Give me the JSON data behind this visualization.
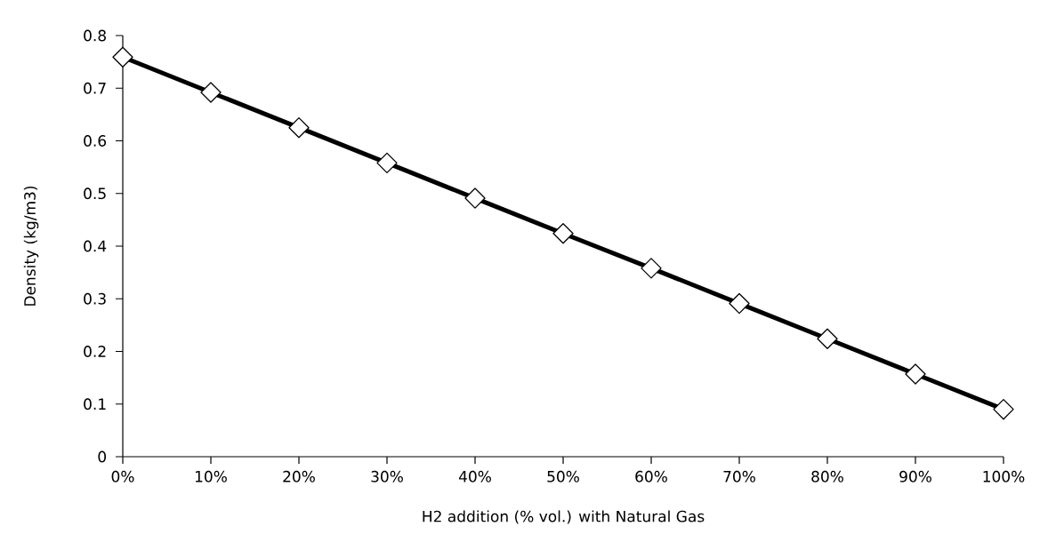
{
  "chart_data": {
    "type": "line",
    "xlabel": "H2 addition (% vol.) with Natural Gas",
    "ylabel": "Density (kg/m3)",
    "categories": [
      "0%",
      "10%",
      "20%",
      "30%",
      "40%",
      "50%",
      "60%",
      "70%",
      "80%",
      "90%",
      "100%"
    ],
    "series": [
      {
        "color": "#000000",
        "values": [
          0.759,
          0.692,
          0.625,
          0.558,
          0.491,
          0.424,
          0.358,
          0.291,
          0.224,
          0.157,
          0.09
        ]
      }
    ],
    "ylim": [
      0,
      0.8
    ],
    "yticks": [
      0,
      0.1,
      0.2,
      0.3,
      0.4,
      0.5,
      0.6,
      0.7,
      0.8
    ],
    "grid": false,
    "marker": "diamond",
    "line_style": "solid"
  }
}
